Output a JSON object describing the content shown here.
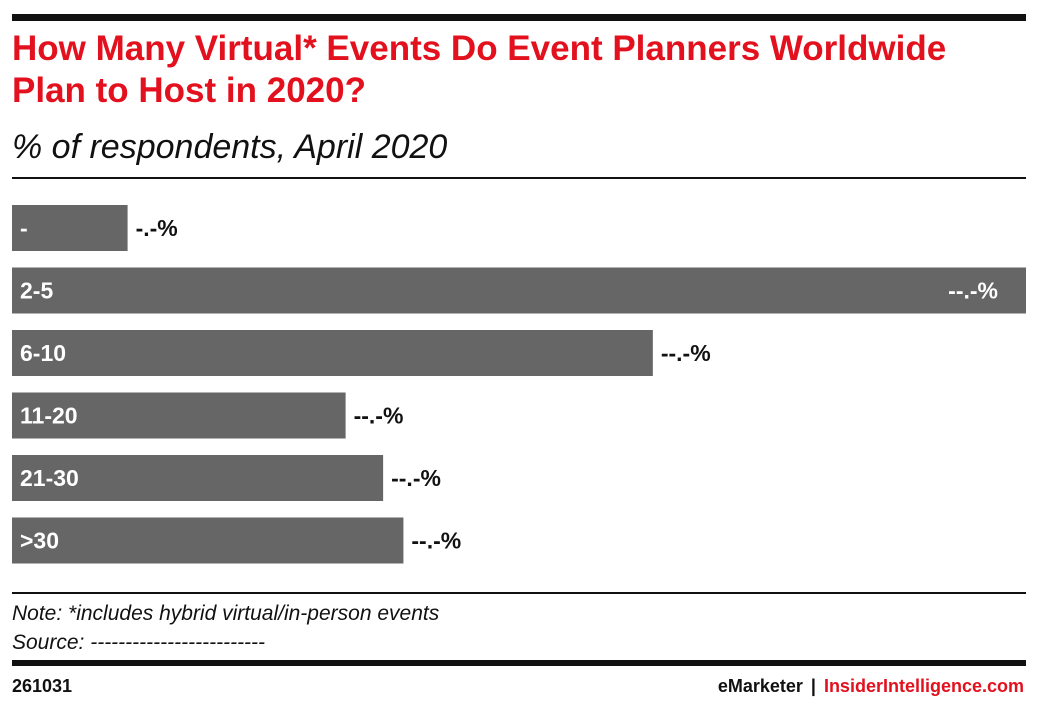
{
  "header": {
    "title": "How Many Virtual* Events Do Event Planners Worldwide Plan to Host in 2020?",
    "subtitle": "% of respondents, April 2020"
  },
  "chart_data": {
    "type": "bar",
    "orientation": "horizontal",
    "categories": [
      "-",
      "2-5",
      "6-10",
      "11-20",
      "21-30",
      ">30"
    ],
    "values": [
      11.4,
      100,
      63.2,
      32.9,
      36.6,
      38.6
    ],
    "value_labels": [
      "-.-%",
      "--.-%",
      "--.-%",
      "--.-%",
      "--.-%",
      "--.-%"
    ],
    "xlim": [
      0,
      100
    ],
    "bar_color": "#666666",
    "grid": false,
    "legend": "none"
  },
  "footer": {
    "note": "Note: *includes hybrid virtual/in-person events",
    "source": "Source: -------------------------",
    "chart_id": "261031",
    "brand_emarketer": "eMarketer",
    "brand_separator": "|",
    "brand_insider": "InsiderIntelligence.com"
  },
  "colors": {
    "title": "#e3101e",
    "rules": "#111111",
    "bar": "#666666"
  }
}
